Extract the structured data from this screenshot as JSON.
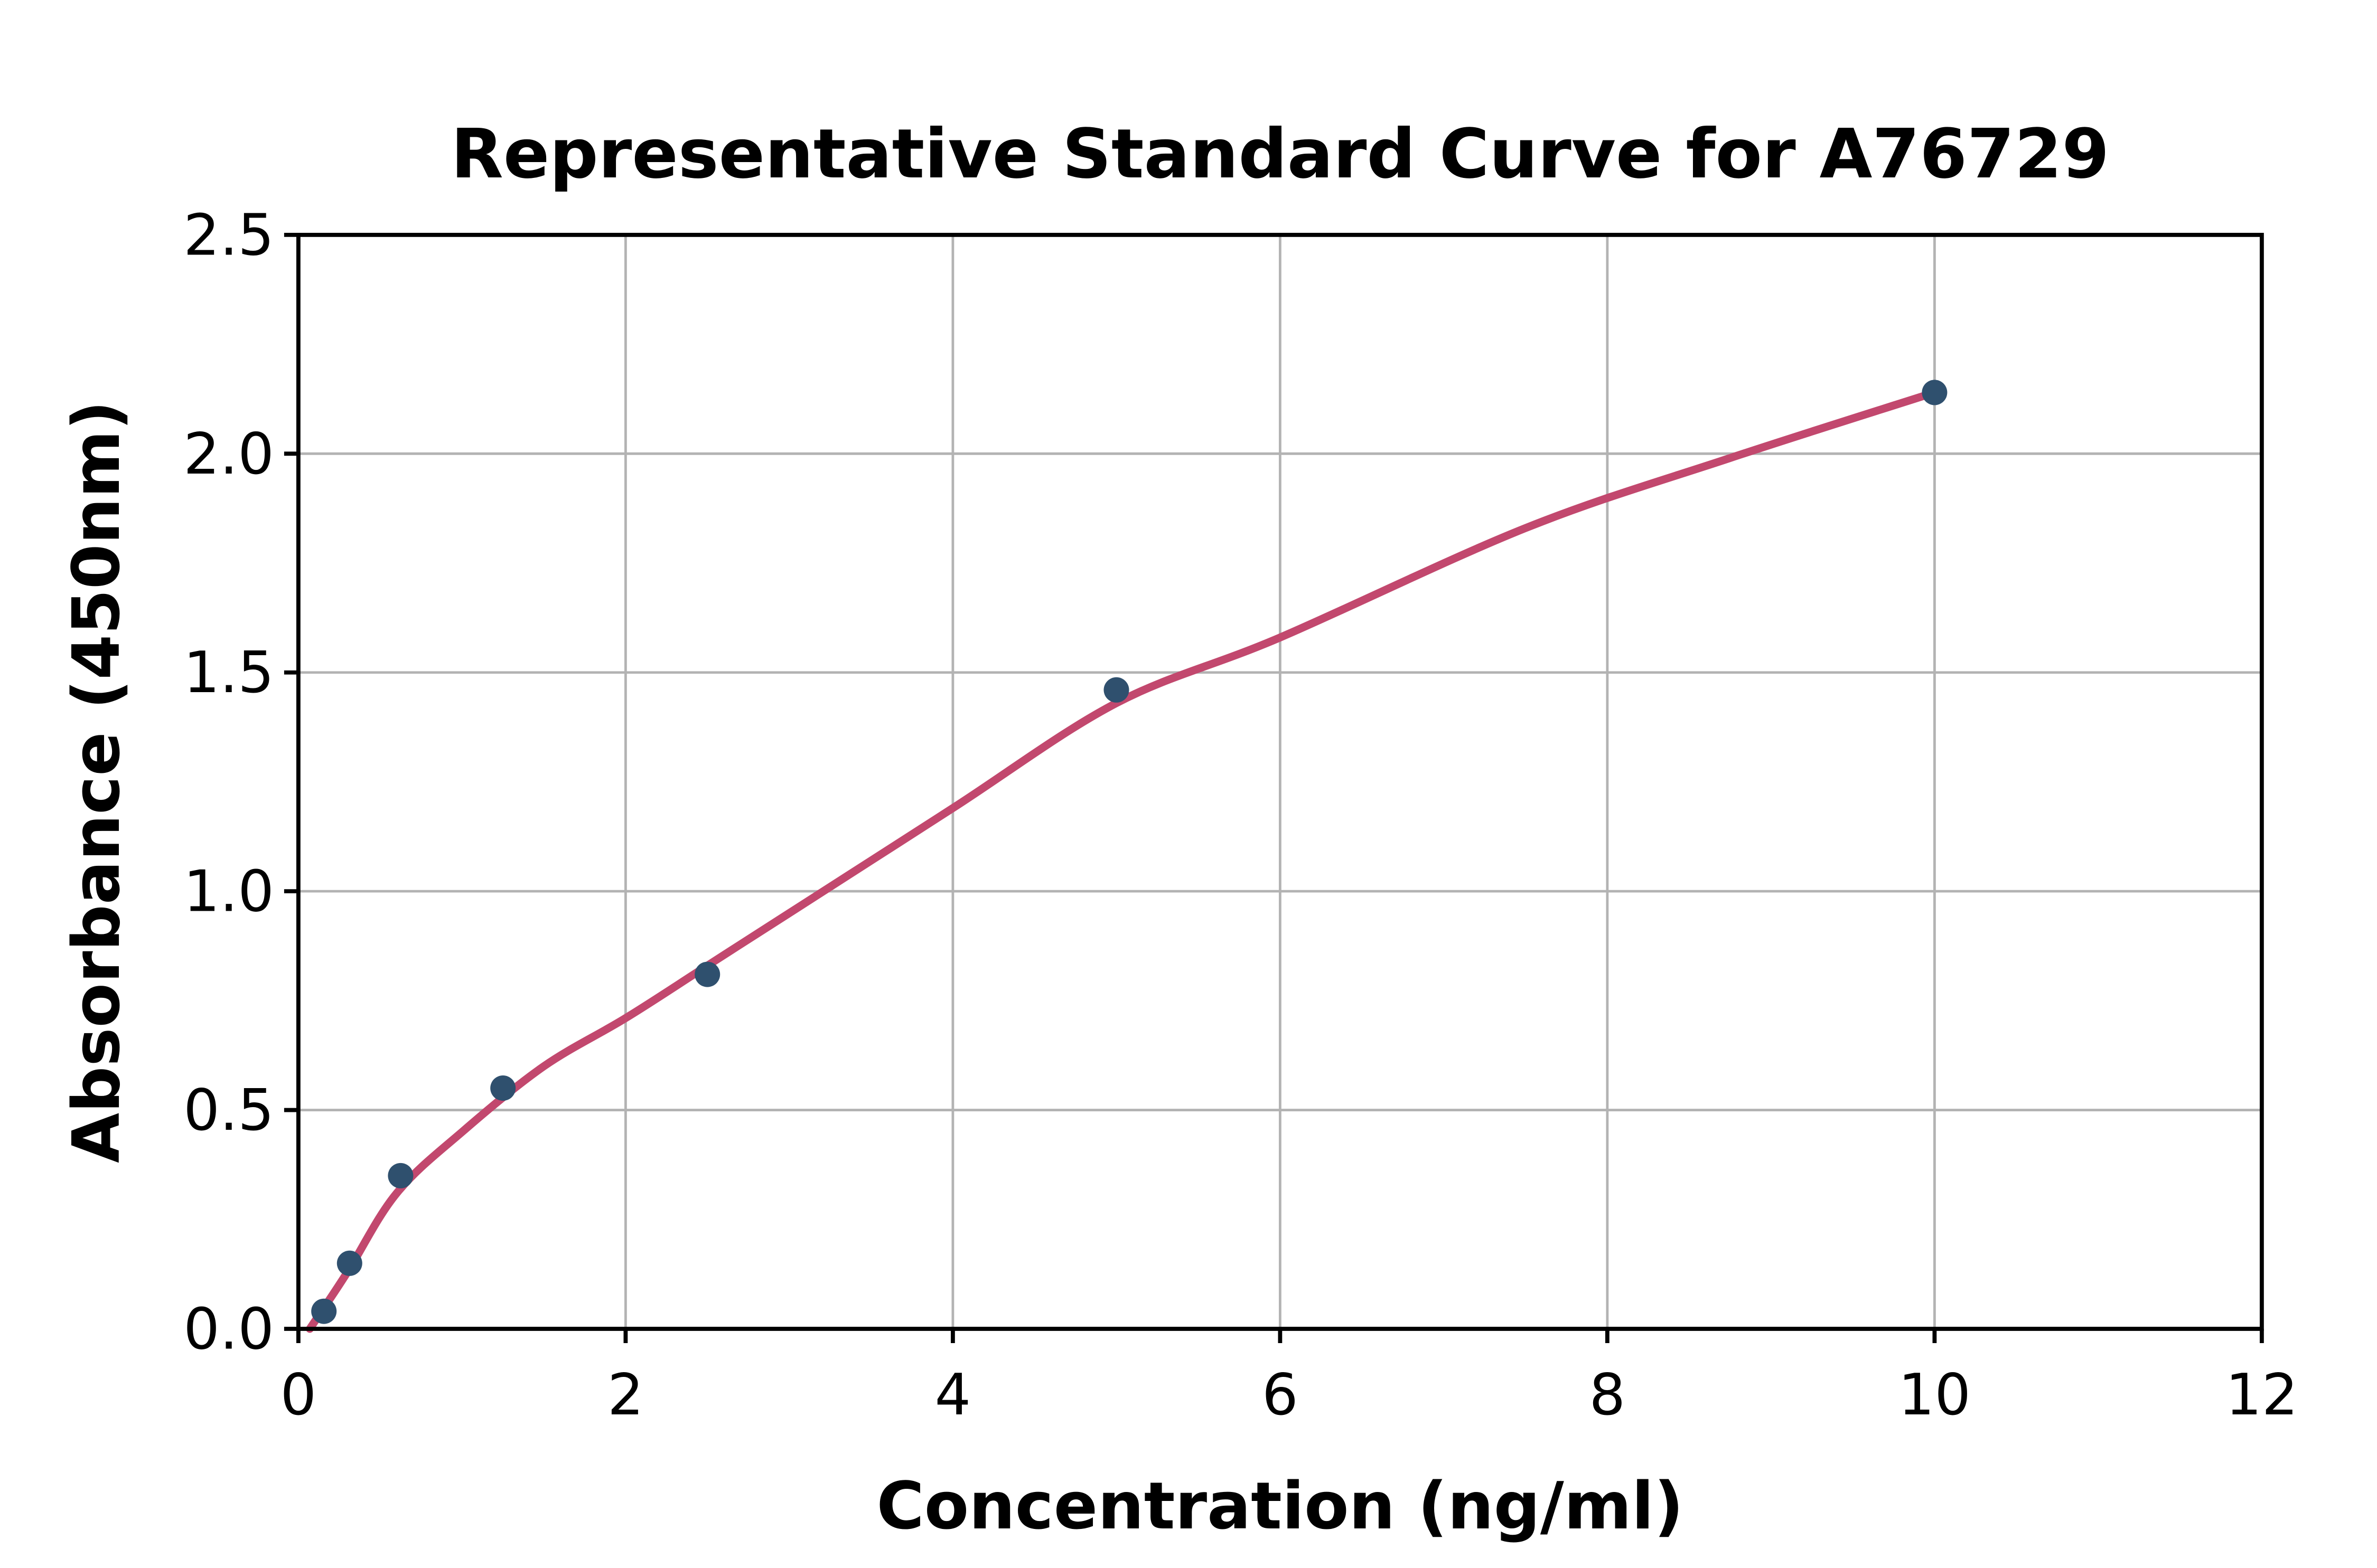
{
  "title": "Representative Standard Curve for A76729",
  "chart_data": {
    "type": "scatter",
    "title": "Representative Standard Curve for A76729",
    "xlabel": "Concentration (ng/ml)",
    "ylabel": "Absorbance (450nm)",
    "xlim": [
      0,
      12
    ],
    "ylim": [
      0,
      2.5
    ],
    "xticks": [
      0,
      2,
      4,
      6,
      8,
      10,
      12
    ],
    "xtick_labels": [
      "0",
      "2",
      "4",
      "6",
      "8",
      "10",
      "12"
    ],
    "yticks": [
      0,
      0.5,
      1.0,
      1.5,
      2.0,
      2.5
    ],
    "ytick_labels": [
      "0.0",
      "0.5",
      "1.0",
      "1.5",
      "2.0",
      "2.5"
    ],
    "grid": true,
    "legend": false,
    "series": [
      {
        "name": "standard-points",
        "kind": "scatter",
        "color": "#2F506E",
        "marker_radius": 8,
        "points": [
          [
            0.156,
            0.04
          ],
          [
            0.3125,
            0.15
          ],
          [
            0.625,
            0.35
          ],
          [
            1.25,
            0.55
          ],
          [
            2.5,
            0.81
          ],
          [
            5.0,
            1.46
          ],
          [
            10.0,
            2.14
          ]
        ]
      },
      {
        "name": "fit-curve",
        "kind": "line",
        "color": "#C2486E",
        "stroke_width": 5,
        "points": [
          [
            0.07,
            0.0
          ],
          [
            0.3,
            0.13
          ],
          [
            0.6,
            0.31
          ],
          [
            1.0,
            0.45
          ],
          [
            1.5,
            0.6
          ],
          [
            2.0,
            0.71
          ],
          [
            2.5,
            0.83
          ],
          [
            3.0,
            0.95
          ],
          [
            4.0,
            1.19
          ],
          [
            5.0,
            1.43
          ],
          [
            6.0,
            1.58
          ],
          [
            7.5,
            1.83
          ],
          [
            8.75,
            1.99
          ],
          [
            10.0,
            2.14
          ]
        ]
      }
    ],
    "colors": {
      "grid": "#B3B3B3",
      "axis": "#000000",
      "background": "#FFFFFF",
      "point": "#2F506E",
      "curve": "#C2486E"
    }
  }
}
